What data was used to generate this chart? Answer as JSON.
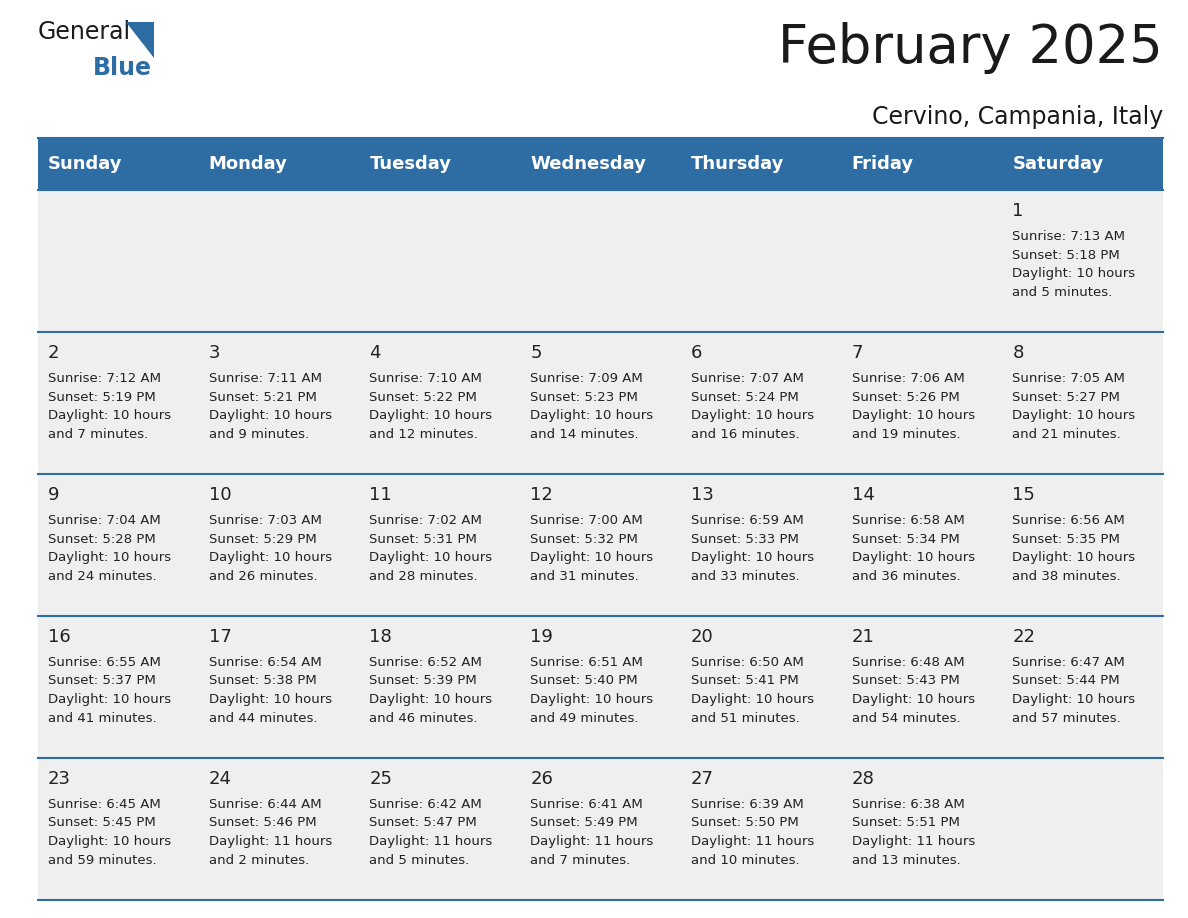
{
  "title": "February 2025",
  "subtitle": "Cervino, Campania, Italy",
  "header_bg": "#2e6da4",
  "header_text": "#ffffff",
  "cell_bg": "#efefef",
  "row_sep_color": "#2e6da4",
  "text_color": "#222222",
  "day_headers": [
    "Sunday",
    "Monday",
    "Tuesday",
    "Wednesday",
    "Thursday",
    "Friday",
    "Saturday"
  ],
  "weeks": [
    [
      {
        "day": null,
        "info": null
      },
      {
        "day": null,
        "info": null
      },
      {
        "day": null,
        "info": null
      },
      {
        "day": null,
        "info": null
      },
      {
        "day": null,
        "info": null
      },
      {
        "day": null,
        "info": null
      },
      {
        "day": "1",
        "info": "Sunrise: 7:13 AM\nSunset: 5:18 PM\nDaylight: 10 hours\nand 5 minutes."
      }
    ],
    [
      {
        "day": "2",
        "info": "Sunrise: 7:12 AM\nSunset: 5:19 PM\nDaylight: 10 hours\nand 7 minutes."
      },
      {
        "day": "3",
        "info": "Sunrise: 7:11 AM\nSunset: 5:21 PM\nDaylight: 10 hours\nand 9 minutes."
      },
      {
        "day": "4",
        "info": "Sunrise: 7:10 AM\nSunset: 5:22 PM\nDaylight: 10 hours\nand 12 minutes."
      },
      {
        "day": "5",
        "info": "Sunrise: 7:09 AM\nSunset: 5:23 PM\nDaylight: 10 hours\nand 14 minutes."
      },
      {
        "day": "6",
        "info": "Sunrise: 7:07 AM\nSunset: 5:24 PM\nDaylight: 10 hours\nand 16 minutes."
      },
      {
        "day": "7",
        "info": "Sunrise: 7:06 AM\nSunset: 5:26 PM\nDaylight: 10 hours\nand 19 minutes."
      },
      {
        "day": "8",
        "info": "Sunrise: 7:05 AM\nSunset: 5:27 PM\nDaylight: 10 hours\nand 21 minutes."
      }
    ],
    [
      {
        "day": "9",
        "info": "Sunrise: 7:04 AM\nSunset: 5:28 PM\nDaylight: 10 hours\nand 24 minutes."
      },
      {
        "day": "10",
        "info": "Sunrise: 7:03 AM\nSunset: 5:29 PM\nDaylight: 10 hours\nand 26 minutes."
      },
      {
        "day": "11",
        "info": "Sunrise: 7:02 AM\nSunset: 5:31 PM\nDaylight: 10 hours\nand 28 minutes."
      },
      {
        "day": "12",
        "info": "Sunrise: 7:00 AM\nSunset: 5:32 PM\nDaylight: 10 hours\nand 31 minutes."
      },
      {
        "day": "13",
        "info": "Sunrise: 6:59 AM\nSunset: 5:33 PM\nDaylight: 10 hours\nand 33 minutes."
      },
      {
        "day": "14",
        "info": "Sunrise: 6:58 AM\nSunset: 5:34 PM\nDaylight: 10 hours\nand 36 minutes."
      },
      {
        "day": "15",
        "info": "Sunrise: 6:56 AM\nSunset: 5:35 PM\nDaylight: 10 hours\nand 38 minutes."
      }
    ],
    [
      {
        "day": "16",
        "info": "Sunrise: 6:55 AM\nSunset: 5:37 PM\nDaylight: 10 hours\nand 41 minutes."
      },
      {
        "day": "17",
        "info": "Sunrise: 6:54 AM\nSunset: 5:38 PM\nDaylight: 10 hours\nand 44 minutes."
      },
      {
        "day": "18",
        "info": "Sunrise: 6:52 AM\nSunset: 5:39 PM\nDaylight: 10 hours\nand 46 minutes."
      },
      {
        "day": "19",
        "info": "Sunrise: 6:51 AM\nSunset: 5:40 PM\nDaylight: 10 hours\nand 49 minutes."
      },
      {
        "day": "20",
        "info": "Sunrise: 6:50 AM\nSunset: 5:41 PM\nDaylight: 10 hours\nand 51 minutes."
      },
      {
        "day": "21",
        "info": "Sunrise: 6:48 AM\nSunset: 5:43 PM\nDaylight: 10 hours\nand 54 minutes."
      },
      {
        "day": "22",
        "info": "Sunrise: 6:47 AM\nSunset: 5:44 PM\nDaylight: 10 hours\nand 57 minutes."
      }
    ],
    [
      {
        "day": "23",
        "info": "Sunrise: 6:45 AM\nSunset: 5:45 PM\nDaylight: 10 hours\nand 59 minutes."
      },
      {
        "day": "24",
        "info": "Sunrise: 6:44 AM\nSunset: 5:46 PM\nDaylight: 11 hours\nand 2 minutes."
      },
      {
        "day": "25",
        "info": "Sunrise: 6:42 AM\nSunset: 5:47 PM\nDaylight: 11 hours\nand 5 minutes."
      },
      {
        "day": "26",
        "info": "Sunrise: 6:41 AM\nSunset: 5:49 PM\nDaylight: 11 hours\nand 7 minutes."
      },
      {
        "day": "27",
        "info": "Sunrise: 6:39 AM\nSunset: 5:50 PM\nDaylight: 11 hours\nand 10 minutes."
      },
      {
        "day": "28",
        "info": "Sunrise: 6:38 AM\nSunset: 5:51 PM\nDaylight: 11 hours\nand 13 minutes."
      },
      {
        "day": null,
        "info": null
      }
    ]
  ],
  "logo_general_color": "#1a1a1a",
  "logo_blue_color": "#2e6da4",
  "logo_triangle_color": "#2e6da4",
  "title_fontsize": 38,
  "subtitle_fontsize": 17,
  "header_fontsize": 13,
  "day_num_fontsize": 13,
  "info_fontsize": 9.5
}
